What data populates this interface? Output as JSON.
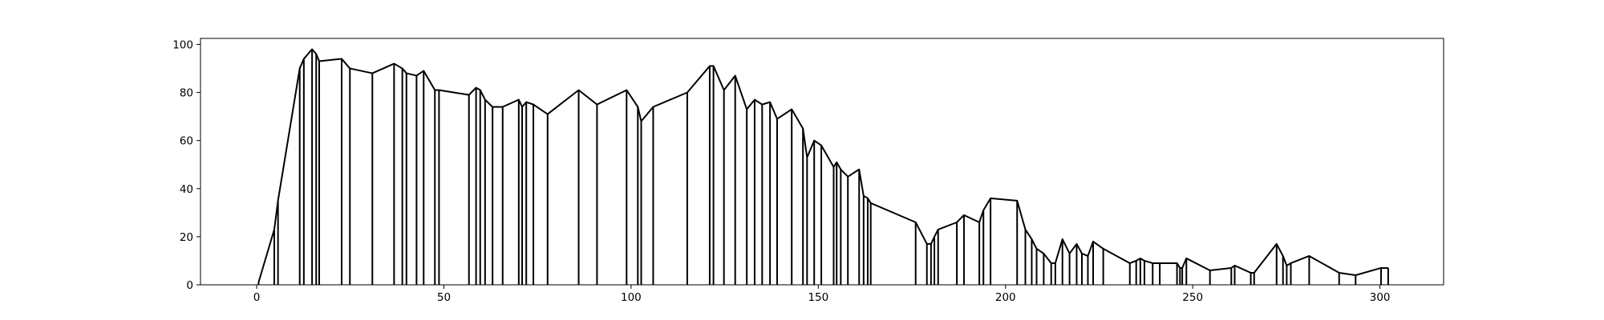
{
  "chart_data": {
    "type": "line",
    "color": "#000000",
    "x": [
      0.5,
      4.7,
      5.7,
      11.5,
      12.6,
      14.8,
      15.9,
      16.7,
      22.7,
      24.9,
      30.9,
      36.7,
      38.9,
      40,
      42.7,
      44.6,
      47.6,
      48.7,
      56.7,
      58.6,
      59.7,
      61,
      63,
      65.7,
      70,
      70.9,
      72,
      73.9,
      77.7,
      86,
      90.9,
      98.8,
      101.8,
      102.7,
      105.9,
      115,
      121,
      122,
      124.8,
      127.8,
      130.9,
      133,
      135,
      137.1,
      139,
      142.9,
      145.9,
      147,
      148.9,
      150.8,
      154.1,
      154.9,
      156,
      157.9,
      160.9,
      162.1,
      163.2,
      164,
      176,
      179,
      180.1,
      181,
      182,
      187,
      188.9,
      193,
      194.1,
      196,
      203.1,
      205.3,
      207,
      208.3,
      210.2,
      212.2,
      213.3,
      215.2,
      217.1,
      219,
      220.4,
      222,
      223.4,
      226.1,
      233.2,
      234.9,
      236,
      237.1,
      239.3,
      241.2,
      245.8,
      246.6,
      247.2,
      248.3,
      254.6,
      260.3,
      261.2,
      265.5,
      266.4,
      272.4,
      274.1,
      275.1,
      276.2,
      281.1,
      289.1,
      293.5,
      300.3,
      302.2
    ],
    "values": [
      1,
      23,
      35,
      90,
      94,
      98,
      96,
      93,
      94,
      90,
      88,
      92,
      90,
      88,
      87,
      89,
      81,
      81,
      79,
      82,
      81,
      77,
      74,
      74,
      77,
      74,
      76,
      75,
      71,
      81,
      75,
      81,
      74,
      68,
      74,
      80,
      91,
      91,
      81,
      87,
      73,
      77,
      75,
      76,
      69,
      73,
      65,
      53,
      60,
      58,
      49,
      51,
      48,
      45,
      48,
      37,
      36,
      34,
      26,
      17,
      17,
      20,
      23,
      26,
      29,
      26,
      31,
      36,
      35,
      23,
      19,
      15,
      13,
      9,
      9,
      19,
      13,
      17,
      13,
      12,
      18,
      15,
      9,
      10,
      11,
      10,
      9,
      9,
      9,
      7,
      7,
      11,
      6,
      7,
      8,
      5,
      5,
      17,
      12,
      8,
      9,
      12,
      5,
      4,
      7,
      7
    ],
    "xlim": [
      -15,
      317
    ],
    "ylim": [
      0,
      102.5
    ],
    "xticks": [
      0,
      50,
      100,
      150,
      200,
      250,
      300
    ],
    "yticks": [
      0,
      20,
      40,
      60,
      80,
      100
    ]
  }
}
